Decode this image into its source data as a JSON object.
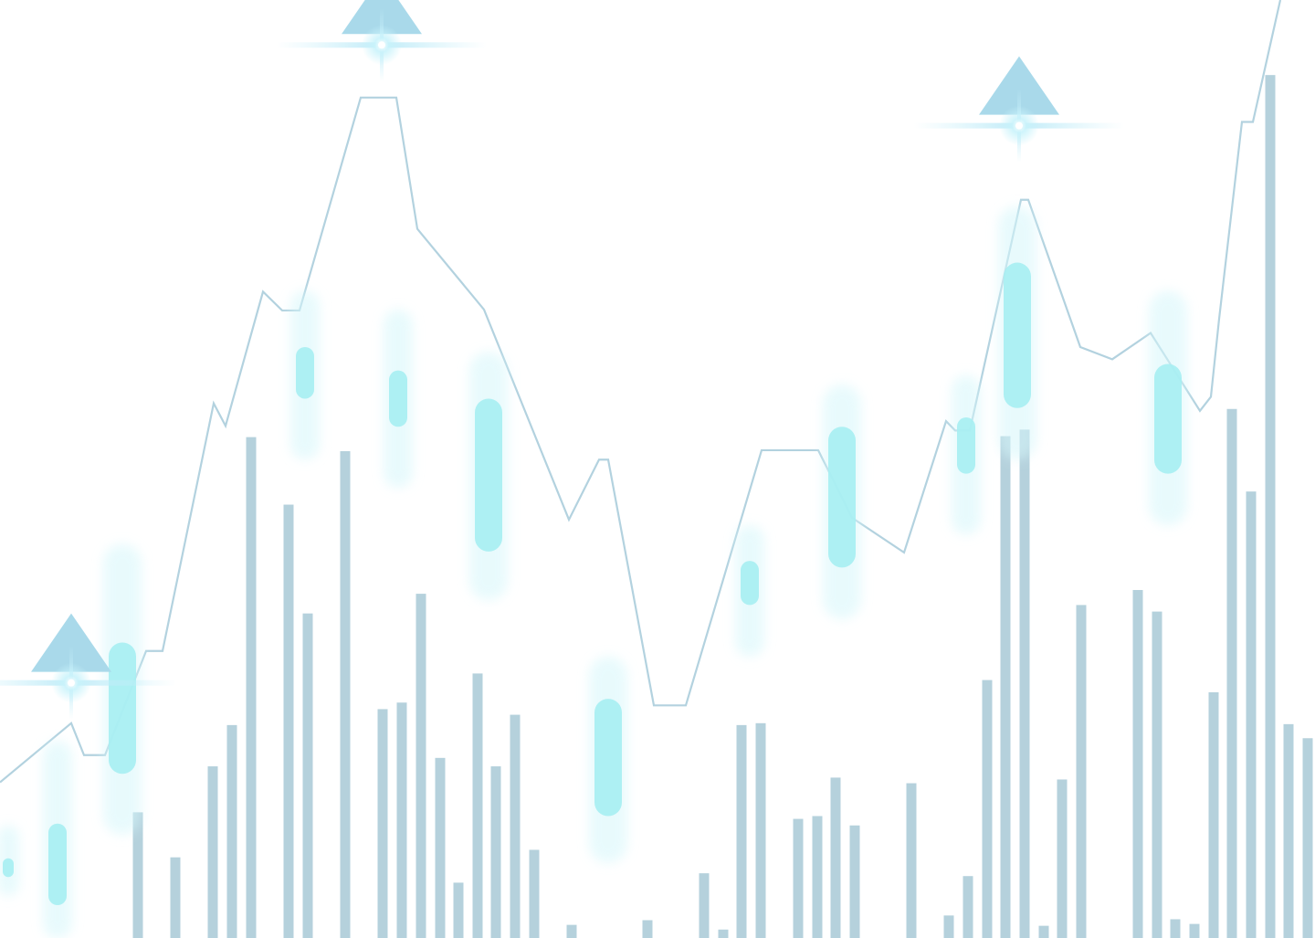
{
  "chart_data": {
    "type": "bar",
    "title": "",
    "xlabel": "",
    "ylabel": "",
    "grid": false,
    "legend": "none",
    "colors": {
      "volume_bar": "#b5d1dc",
      "price_line": "#b3d2df",
      "candle": "#a6eef2",
      "candle_glow": "#d6f7fb",
      "peak_marker": "#a9d9ea",
      "flare": "#e8fbff"
    },
    "ylim": [
      0,
      1000
    ],
    "line_ylim": [
      0,
      1000
    ],
    "series": [
      {
        "kind": "volume_bars",
        "points": [
          {
            "x": 151,
            "y": 134
          },
          {
            "x": 192,
            "y": 86
          },
          {
            "x": 233,
            "y": 183
          },
          {
            "x": 254,
            "y": 227
          },
          {
            "x": 275,
            "y": 534
          },
          {
            "x": 316,
            "y": 462
          },
          {
            "x": 337,
            "y": 346
          },
          {
            "x": 378,
            "y": 519
          },
          {
            "x": 419,
            "y": 244
          },
          {
            "x": 440,
            "y": 251
          },
          {
            "x": 461,
            "y": 367
          },
          {
            "x": 482,
            "y": 192
          },
          {
            "x": 502,
            "y": 59
          },
          {
            "x": 523,
            "y": 282
          },
          {
            "x": 543,
            "y": 183
          },
          {
            "x": 564,
            "y": 238
          },
          {
            "x": 585,
            "y": 94
          },
          {
            "x": 626,
            "y": 14
          },
          {
            "x": 709,
            "y": 19
          },
          {
            "x": 771,
            "y": 69
          },
          {
            "x": 792,
            "y": 9
          },
          {
            "x": 812,
            "y": 227
          },
          {
            "x": 833,
            "y": 229
          },
          {
            "x": 874,
            "y": 127
          },
          {
            "x": 895,
            "y": 130
          },
          {
            "x": 915,
            "y": 171
          },
          {
            "x": 936,
            "y": 120
          },
          {
            "x": 998,
            "y": 165
          },
          {
            "x": 1039,
            "y": 24
          },
          {
            "x": 1060,
            "y": 66
          },
          {
            "x": 1081,
            "y": 275
          },
          {
            "x": 1101,
            "y": 535
          },
          {
            "x": 1122,
            "y": 542
          },
          {
            "x": 1143,
            "y": 13
          },
          {
            "x": 1163,
            "y": 169
          },
          {
            "x": 1184,
            "y": 355
          },
          {
            "x": 1246,
            "y": 371
          },
          {
            "x": 1267,
            "y": 348
          },
          {
            "x": 1287,
            "y": 20
          },
          {
            "x": 1308,
            "y": 15
          },
          {
            "x": 1329,
            "y": 262
          },
          {
            "x": 1349,
            "y": 564
          },
          {
            "x": 1370,
            "y": 476
          },
          {
            "x": 1391,
            "y": 920
          },
          {
            "x": 1411,
            "y": 228
          },
          {
            "x": 1432,
            "y": 213
          }
        ]
      },
      {
        "kind": "price_line",
        "points": [
          {
            "x": 0,
            "y": 166
          },
          {
            "x": 78,
            "y": 229
          },
          {
            "x": 92,
            "y": 195
          },
          {
            "x": 115,
            "y": 195
          },
          {
            "x": 160,
            "y": 306
          },
          {
            "x": 178,
            "y": 306
          },
          {
            "x": 234,
            "y": 570
          },
          {
            "x": 247,
            "y": 546
          },
          {
            "x": 288,
            "y": 689
          },
          {
            "x": 309,
            "y": 669
          },
          {
            "x": 328,
            "y": 669
          },
          {
            "x": 395,
            "y": 896
          },
          {
            "x": 434,
            "y": 896
          },
          {
            "x": 457,
            "y": 756
          },
          {
            "x": 530,
            "y": 670
          },
          {
            "x": 623,
            "y": 446
          },
          {
            "x": 656,
            "y": 510
          },
          {
            "x": 666,
            "y": 510
          },
          {
            "x": 716,
            "y": 248
          },
          {
            "x": 751,
            "y": 248
          },
          {
            "x": 834,
            "y": 520
          },
          {
            "x": 896,
            "y": 520
          },
          {
            "x": 933,
            "y": 448
          },
          {
            "x": 990,
            "y": 411
          },
          {
            "x": 1036,
            "y": 551
          },
          {
            "x": 1046,
            "y": 541
          },
          {
            "x": 1062,
            "y": 541
          },
          {
            "x": 1118,
            "y": 787
          },
          {
            "x": 1126,
            "y": 787
          },
          {
            "x": 1183,
            "y": 630
          },
          {
            "x": 1218,
            "y": 617
          },
          {
            "x": 1260,
            "y": 645
          },
          {
            "x": 1314,
            "y": 562
          },
          {
            "x": 1326,
            "y": 577
          },
          {
            "x": 1335,
            "y": 660
          },
          {
            "x": 1360,
            "y": 870
          },
          {
            "x": 1372,
            "y": 870
          },
          {
            "x": 1402,
            "y": 1000
          }
        ]
      },
      {
        "kind": "candles",
        "points": [
          {
            "x": 9,
            "open": 65,
            "close": 85,
            "high": 120,
            "low": 45
          },
          {
            "x": 63,
            "open": 35,
            "close": 122,
            "high": 210,
            "low": 0
          },
          {
            "x": 134,
            "open": 175,
            "close": 315,
            "high": 420,
            "low": 110
          },
          {
            "x": 334,
            "open": 575,
            "close": 630,
            "high": 690,
            "low": 510
          },
          {
            "x": 436,
            "open": 545,
            "close": 605,
            "high": 670,
            "low": 480
          },
          {
            "x": 535,
            "open": 412,
            "close": 575,
            "high": 625,
            "low": 360
          },
          {
            "x": 666,
            "open": 130,
            "close": 255,
            "high": 300,
            "low": 80
          },
          {
            "x": 821,
            "open": 355,
            "close": 402,
            "high": 440,
            "low": 300
          },
          {
            "x": 922,
            "open": 395,
            "close": 545,
            "high": 590,
            "low": 340
          },
          {
            "x": 1058,
            "open": 495,
            "close": 555,
            "high": 600,
            "low": 430
          },
          {
            "x": 1114,
            "open": 565,
            "close": 720,
            "high": 780,
            "low": 510
          },
          {
            "x": 1279,
            "open": 495,
            "close": 612,
            "high": 690,
            "low": 440
          }
        ]
      },
      {
        "kind": "peak_markers",
        "points": [
          {
            "x": 78,
            "y": 272
          },
          {
            "x": 418,
            "y": 952
          },
          {
            "x": 1116,
            "y": 866
          }
        ]
      }
    ]
  }
}
